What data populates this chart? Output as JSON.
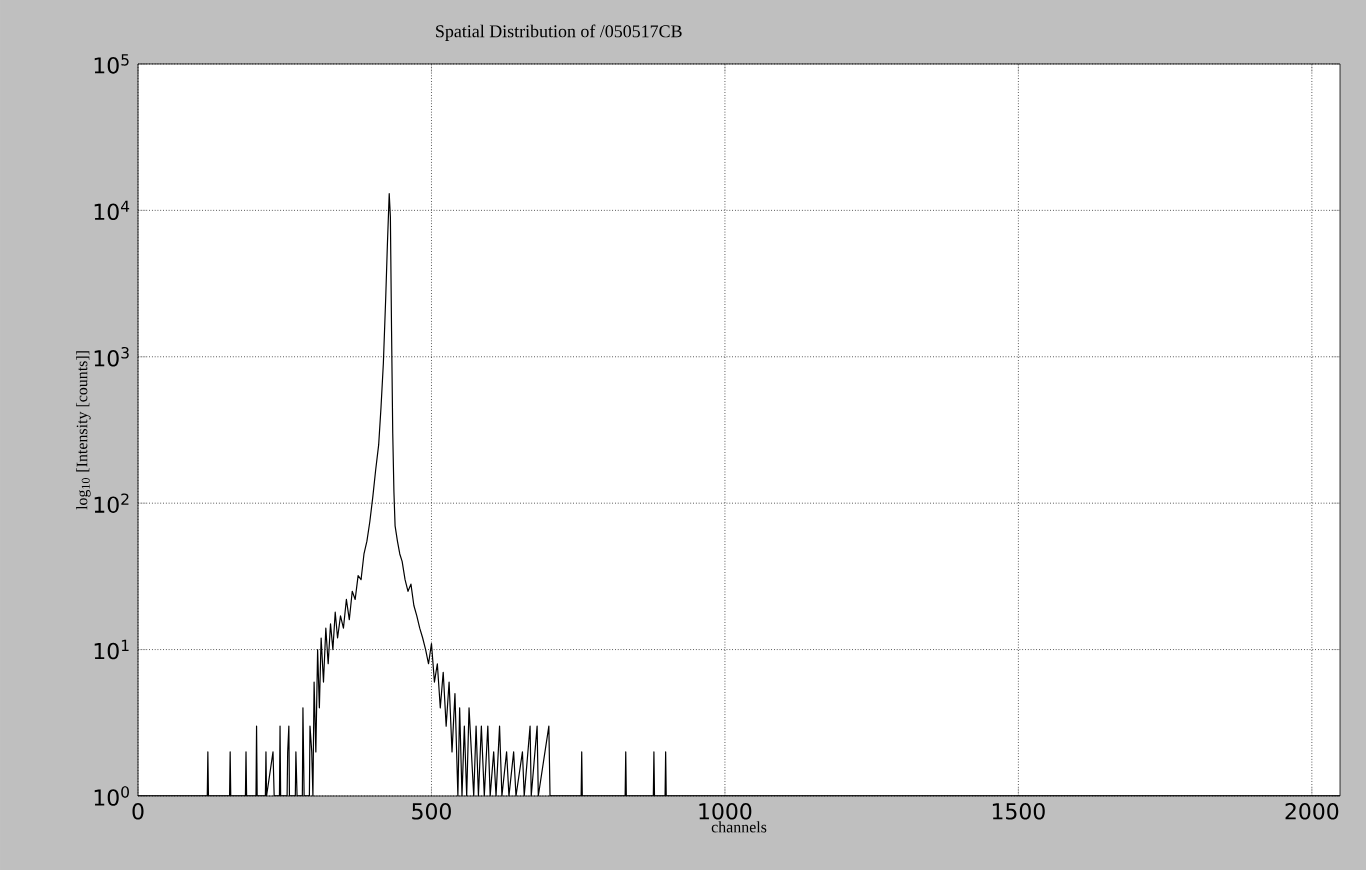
{
  "chart_data": {
    "type": "line",
    "title": "Spatial Distribution of /050517CB",
    "xlabel": "channels",
    "ylabel": "log$_{10}$ [Intensity [counts]]",
    "series": [
      {
        "color": "#000000",
        "x": [
          0,
          118,
          119,
          120,
          156,
          157,
          158,
          183,
          184,
          185,
          201,
          202,
          203,
          217,
          218,
          219,
          230,
          232,
          241,
          242,
          243,
          254,
          255,
          257,
          258,
          268,
          269,
          271,
          280,
          281,
          283,
          292,
          293,
          296,
          298,
          300,
          303,
          306,
          309,
          312,
          316,
          320,
          324,
          328,
          332,
          336,
          340,
          345,
          350,
          355,
          360,
          365,
          370,
          375,
          380,
          385,
          390,
          395,
          400,
          405,
          410,
          414,
          418,
          422,
          425,
          428,
          430,
          432,
          434,
          436,
          438,
          442,
          446,
          450,
          455,
          460,
          465,
          470,
          475,
          480,
          485,
          490,
          495,
          500,
          505,
          510,
          515,
          520,
          525,
          530,
          535,
          540,
          545,
          548,
          552,
          556,
          560,
          564,
          568,
          572,
          576,
          580,
          585,
          590,
          596,
          600,
          606,
          610,
          616,
          620,
          628,
          632,
          640,
          644,
          655,
          658,
          668,
          670,
          680,
          682,
          700,
          702,
          755,
          756,
          757,
          830,
          831,
          832,
          878,
          879,
          880,
          898,
          899,
          900,
          2048
        ],
        "values": [
          1,
          1,
          2,
          1,
          1,
          2,
          1,
          1,
          2,
          1,
          1,
          3,
          1,
          1,
          2,
          1,
          2,
          1,
          1,
          3,
          1,
          1,
          2,
          3,
          1,
          1,
          2,
          1,
          1,
          4,
          1,
          1,
          3,
          2,
          1,
          6,
          2,
          10,
          4,
          12,
          6,
          14,
          8,
          15,
          10,
          18,
          12,
          17,
          14,
          22,
          16,
          25,
          22,
          32,
          30,
          45,
          55,
          75,
          110,
          170,
          250,
          450,
          900,
          2500,
          6000,
          13000,
          9000,
          1500,
          300,
          120,
          70,
          55,
          45,
          40,
          30,
          25,
          28,
          20,
          17,
          14,
          12,
          10,
          8,
          11,
          6,
          8,
          4,
          7,
          3,
          6,
          2,
          5,
          1,
          4,
          1,
          3,
          1,
          4,
          2,
          1,
          3,
          1,
          3,
          1,
          3,
          1,
          2,
          1,
          3,
          1,
          2,
          1,
          2,
          1,
          2,
          1,
          3,
          1,
          3,
          1,
          3,
          1,
          1,
          2,
          1,
          1,
          2,
          1,
          1,
          2,
          1,
          1,
          2,
          1,
          1
        ]
      }
    ],
    "xlim": [
      0,
      2048
    ],
    "ylim": [
      1,
      100000
    ],
    "log": "y",
    "grid": true,
    "xticks": [
      0,
      500,
      1000,
      1500,
      2000
    ],
    "yticks": [
      {
        "value": 1,
        "label": "10$^{0}$"
      },
      {
        "value": 10,
        "label": "10$^{1}$"
      },
      {
        "value": 100,
        "label": "10$^{2}$"
      },
      {
        "value": 1000,
        "label": "10$^{3}$"
      },
      {
        "value": 10000,
        "label": "10$^{4}$"
      },
      {
        "value": 100000,
        "label": "10$^{5}$"
      }
    ]
  }
}
